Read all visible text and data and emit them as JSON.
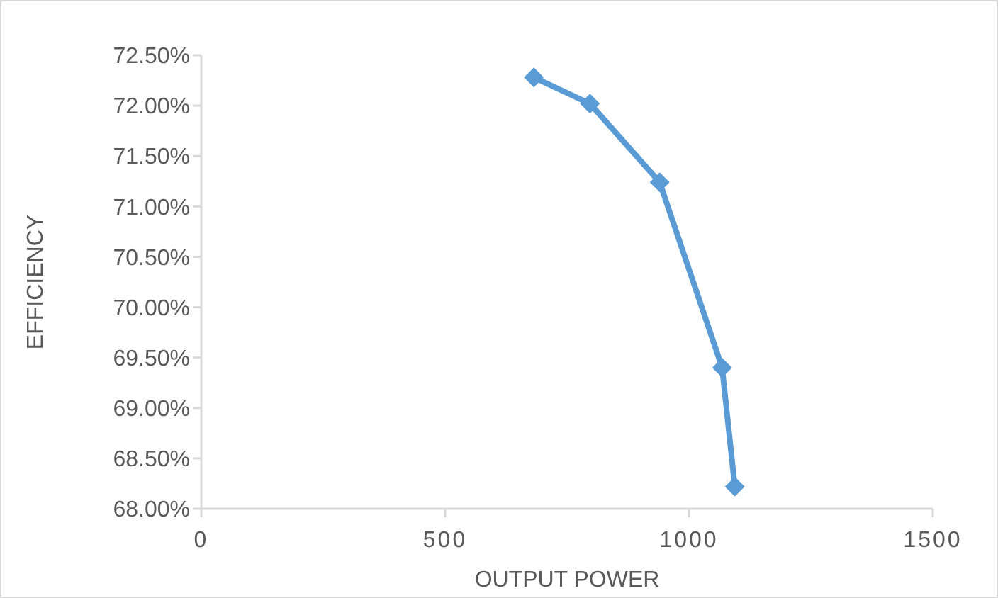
{
  "chart_data": {
    "type": "line",
    "xlabel": "OUTPUT POWER",
    "ylabel": "EFFICIENCY",
    "x": [
      682,
      797,
      940,
      1068,
      1094
    ],
    "series": [
      {
        "color": "#5b9bd5",
        "values": [
          72.28,
          72.02,
          71.24,
          69.4,
          68.22
        ]
      }
    ],
    "xlim": [
      0,
      1500
    ],
    "xticks": [
      0,
      500,
      1000,
      1500
    ],
    "ylim": [
      68,
      72.5
    ],
    "yticks": [
      {
        "value": 68,
        "label": "68.00%"
      },
      {
        "value": 68.5,
        "label": "68.50%"
      },
      {
        "value": 69,
        "label": "69.00%"
      },
      {
        "value": 69.5,
        "label": "69.50%"
      },
      {
        "value": 70,
        "label": "70.00%"
      },
      {
        "value": 70.5,
        "label": "70.50%"
      },
      {
        "value": 71,
        "label": "71.00%"
      },
      {
        "value": 71.5,
        "label": "71.50%"
      },
      {
        "value": 72,
        "label": "72.00%"
      },
      {
        "value": 72.5,
        "label": "72.50%"
      }
    ],
    "marker": "diamond",
    "line_style": "solid"
  }
}
